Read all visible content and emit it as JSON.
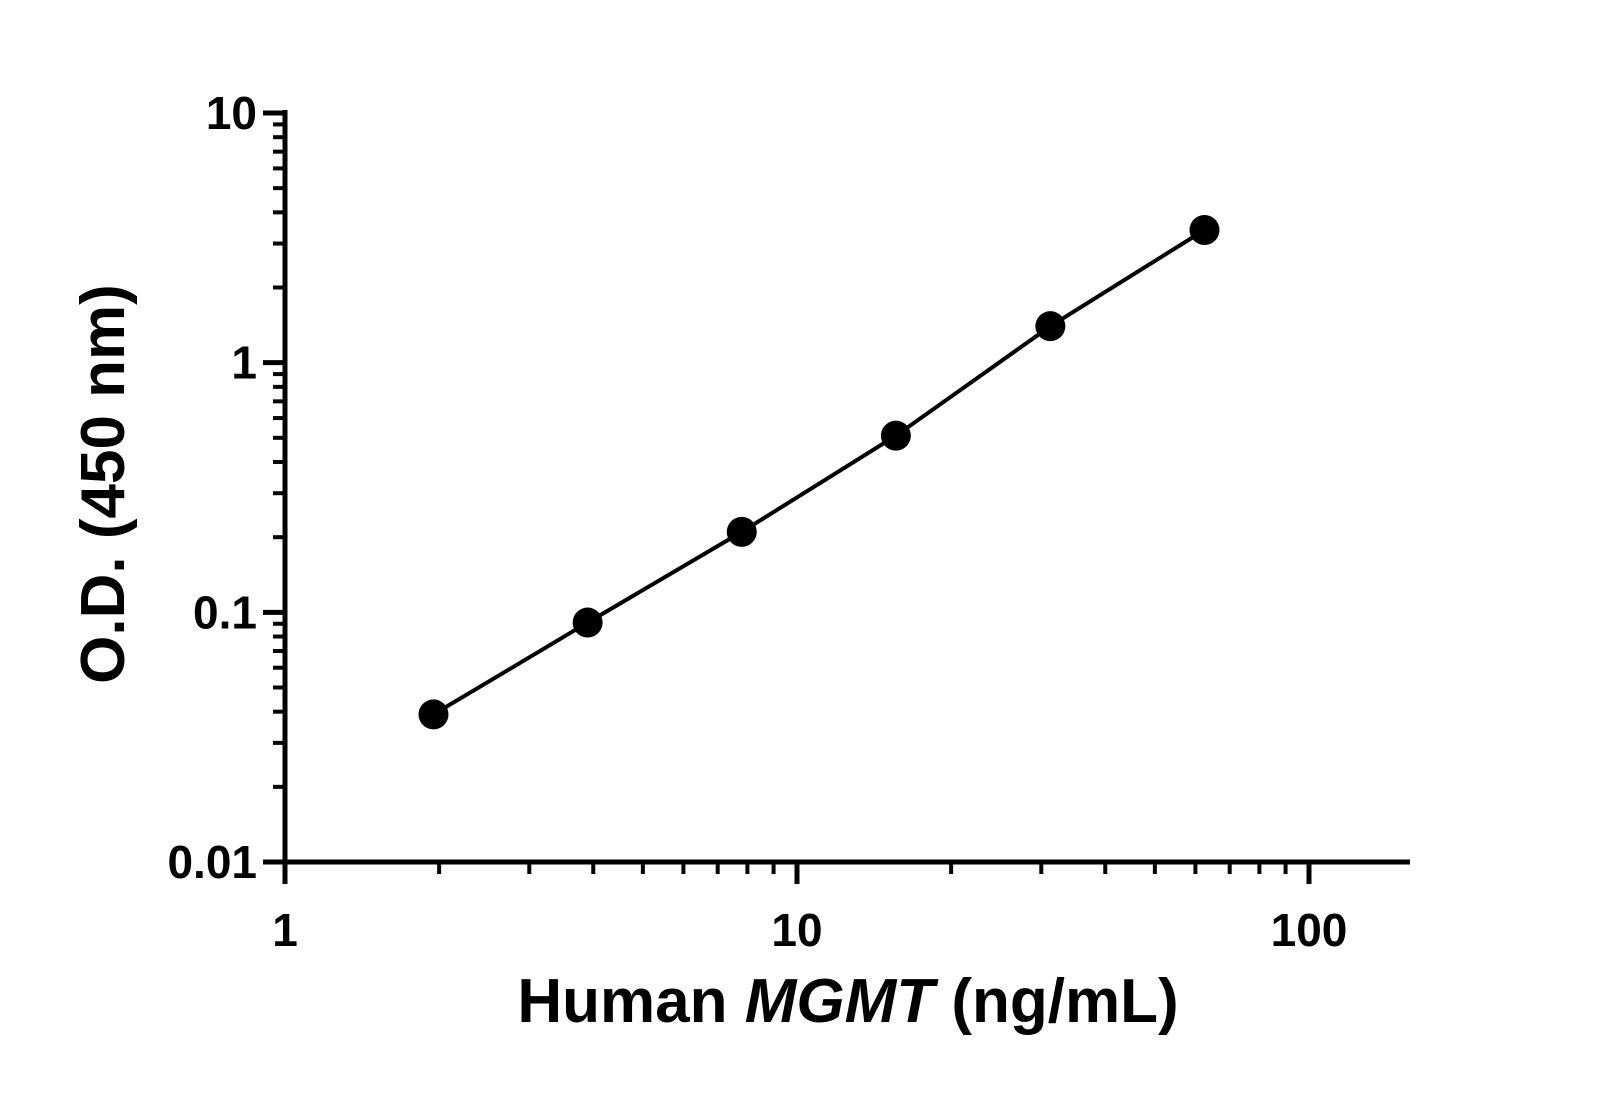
{
  "chart_data": {
    "type": "line",
    "title": "",
    "xlabel_parts": [
      "Human ",
      "MGMT",
      " (ng/mL)"
    ],
    "ylabel": "O.D. (450 nm)",
    "x_scale": "log",
    "y_scale": "log",
    "xlim": [
      1,
      160
    ],
    "ylim": [
      0.01,
      10
    ],
    "x_ticks": [
      {
        "value": 1,
        "label": "1"
      },
      {
        "value": 10,
        "label": "10"
      },
      {
        "value": 100,
        "label": "100"
      }
    ],
    "y_ticks": [
      {
        "value": 0.01,
        "label": "0.01"
      },
      {
        "value": 0.1,
        "label": "0.1"
      },
      {
        "value": 1,
        "label": "1"
      },
      {
        "value": 10,
        "label": "10"
      }
    ],
    "grid": false,
    "legend": "none",
    "series": [
      {
        "x": [
          1.95,
          3.9,
          7.8,
          15.6,
          31.25,
          62.5
        ],
        "y": [
          0.039,
          0.091,
          0.21,
          0.51,
          1.4,
          3.4
        ],
        "color": "#000000",
        "marker": "circle"
      }
    ]
  }
}
